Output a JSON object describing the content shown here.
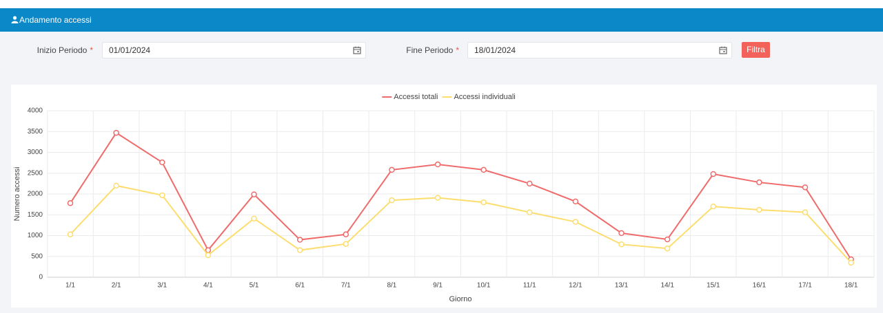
{
  "header": {
    "title": "Andamento accessi"
  },
  "filters": {
    "start": {
      "label": "Inizio Periodo",
      "required": "*",
      "value": "01/01/2024"
    },
    "end": {
      "label": "Fine Periodo",
      "required": "*",
      "value": "18/01/2024"
    },
    "button": "Filtra"
  },
  "chart_data": {
    "type": "line",
    "categories": [
      "1/1",
      "2/1",
      "3/1",
      "4/1",
      "5/1",
      "6/1",
      "7/1",
      "8/1",
      "9/1",
      "10/1",
      "11/1",
      "12/1",
      "13/1",
      "14/1",
      "15/1",
      "16/1",
      "17/1",
      "18/1"
    ],
    "series": [
      {
        "name": "Accessi totali",
        "color": "#ef6b6b",
        "values": [
          1780,
          3470,
          2760,
          650,
          1990,
          900,
          1030,
          2580,
          2710,
          2580,
          2250,
          1820,
          1060,
          910,
          2480,
          2280,
          2160,
          430
        ]
      },
      {
        "name": "Accessi individuali",
        "color": "#fcdd6e",
        "values": [
          1030,
          2200,
          1970,
          530,
          1410,
          650,
          800,
          1850,
          1910,
          1800,
          1560,
          1330,
          790,
          690,
          1700,
          1620,
          1560,
          350
        ]
      }
    ],
    "ylim": [
      0,
      4000
    ],
    "yticks": [
      0,
      500,
      1000,
      1500,
      2000,
      2500,
      3000,
      3500,
      4000
    ],
    "y_label": "Numero accessi",
    "x_label": "Giorno",
    "grid": true,
    "legend": "top"
  }
}
